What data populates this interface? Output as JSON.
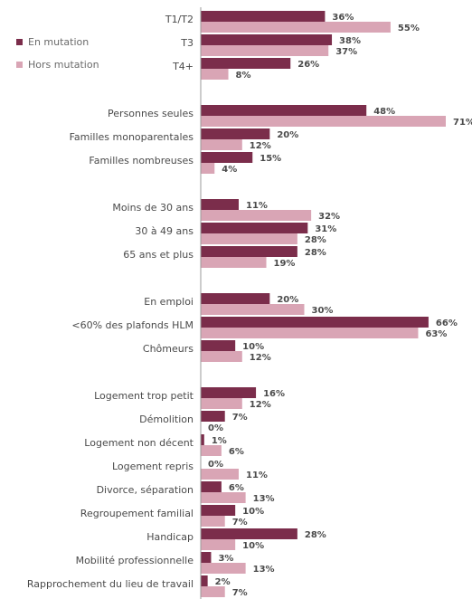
{
  "chart_data": {
    "type": "bar",
    "orientation": "horizontal",
    "colors": {
      "en_mutation": "#7b2d4b",
      "hors_mutation": "#d9a5b5",
      "axis": "#9a9a9a",
      "text": "#4a4a4a"
    },
    "series": [
      {
        "name": "En mutation",
        "key": "en_mutation"
      },
      {
        "name": "Hors mutation",
        "key": "hors_mutation"
      }
    ],
    "xlim": [
      0,
      71
    ],
    "groups": [
      {
        "categories": [
          {
            "label": "T1/T2",
            "values": [
              36,
              55
            ]
          },
          {
            "label": "T3",
            "values": [
              38,
              37
            ]
          },
          {
            "label": "T4+",
            "values": [
              26,
              8
            ]
          }
        ]
      },
      {
        "categories": [
          {
            "label": "Personnes seules",
            "values": [
              48,
              71
            ]
          },
          {
            "label": "Familles monoparentales",
            "values": [
              20,
              12
            ]
          },
          {
            "label": "Familles nombreuses",
            "values": [
              15,
              4
            ]
          }
        ]
      },
      {
        "categories": [
          {
            "label": "Moins de 30 ans",
            "values": [
              11,
              32
            ]
          },
          {
            "label": "30 à 49 ans",
            "values": [
              31,
              28
            ]
          },
          {
            "label": "65 ans et plus",
            "values": [
              28,
              19
            ]
          }
        ]
      },
      {
        "categories": [
          {
            "label": "En emploi",
            "values": [
              20,
              30
            ]
          },
          {
            "label": "<60% des plafonds HLM",
            "values": [
              66,
              63
            ]
          },
          {
            "label": "Chômeurs",
            "values": [
              10,
              12
            ]
          }
        ]
      },
      {
        "categories": [
          {
            "label": "Logement trop petit",
            "values": [
              16,
              12
            ]
          },
          {
            "label": "Démolition",
            "values": [
              7,
              0
            ]
          },
          {
            "label": "Logement non décent",
            "values": [
              1,
              6
            ]
          },
          {
            "label": "Logement repris",
            "values": [
              0,
              11
            ]
          },
          {
            "label": "Divorce, séparation",
            "values": [
              6,
              13
            ]
          },
          {
            "label": "Regroupement familial",
            "values": [
              10,
              7
            ]
          },
          {
            "label": "Handicap",
            "values": [
              28,
              10
            ]
          },
          {
            "label": "Mobilité professionnelle",
            "values": [
              3,
              13
            ]
          },
          {
            "label": "Rapprochement du lieu de travail",
            "values": [
              2,
              7
            ]
          }
        ]
      }
    ],
    "value_suffix": "%",
    "legend_placement": "top-left"
  }
}
